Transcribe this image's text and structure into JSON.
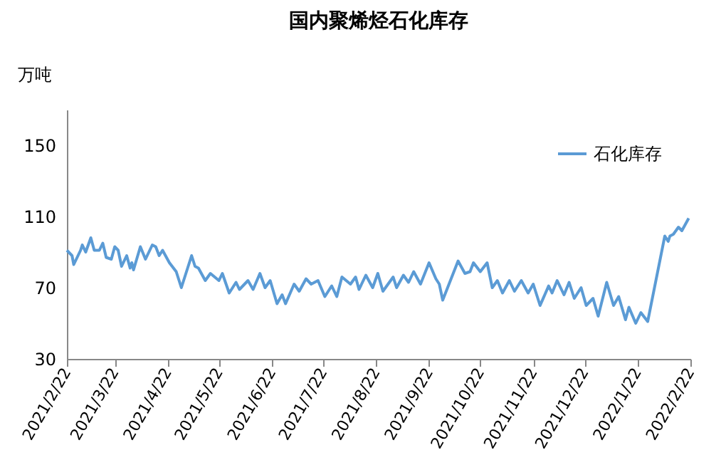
{
  "chart_data": {
    "type": "line",
    "title": "国内聚烯烃石化库存",
    "ylabel": "万吨",
    "x": [
      "2021-02-22",
      "2021-02-25",
      "2021-02-26",
      "2021-03-02",
      "2021-03-03",
      "2021-03-05",
      "2021-03-08",
      "2021-03-10",
      "2021-03-13",
      "2021-03-15",
      "2021-03-17",
      "2021-03-20",
      "2021-03-22",
      "2021-03-24",
      "2021-03-26",
      "2021-03-29",
      "2021-03-31",
      "2021-04-01",
      "2021-04-02",
      "2021-04-06",
      "2021-04-09",
      "2021-04-13",
      "2021-04-15",
      "2021-04-17",
      "2021-04-19",
      "2021-04-23",
      "2021-04-27",
      "2021-04-30",
      "2021-05-06",
      "2021-05-08",
      "2021-05-10",
      "2021-05-14",
      "2021-05-17",
      "2021-05-22",
      "2021-05-24",
      "2021-05-28",
      "2021-06-01",
      "2021-06-03",
      "2021-06-08",
      "2021-06-11",
      "2021-06-15",
      "2021-06-18",
      "2021-06-21",
      "2021-06-25",
      "2021-06-28",
      "2021-06-30",
      "2021-07-05",
      "2021-07-08",
      "2021-07-12",
      "2021-07-15",
      "2021-07-19",
      "2021-07-23",
      "2021-07-27",
      "2021-07-30",
      "2021-08-02",
      "2021-08-07",
      "2021-08-10",
      "2021-08-12",
      "2021-08-16",
      "2021-08-20",
      "2021-08-23",
      "2021-08-26",
      "2021-09-01",
      "2021-09-03",
      "2021-09-07",
      "2021-09-10",
      "2021-09-13",
      "2021-09-17",
      "2021-09-22",
      "2021-09-26",
      "2021-09-28",
      "2021-09-30",
      "2021-10-09",
      "2021-10-13",
      "2021-10-16",
      "2021-10-18",
      "2021-10-22",
      "2021-10-26",
      "2021-10-29",
      "2021-11-01",
      "2021-11-04",
      "2021-11-08",
      "2021-11-11",
      "2021-11-15",
      "2021-11-19",
      "2021-11-22",
      "2021-11-26",
      "2021-12-01",
      "2021-12-03",
      "2021-12-06",
      "2021-12-10",
      "2021-12-13",
      "2021-12-16",
      "2021-12-20",
      "2021-12-23",
      "2021-12-27",
      "2021-12-30",
      "2022-01-04",
      "2022-01-08",
      "2022-01-11",
      "2022-01-15",
      "2022-01-17",
      "2022-01-21",
      "2022-01-24",
      "2022-01-28",
      "2022-02-07",
      "2022-02-09",
      "2022-02-10",
      "2022-02-12",
      "2022-02-15",
      "2022-02-17",
      "2022-02-21"
    ],
    "series": [
      {
        "name": "石化库存",
        "color": "#5b9bd5",
        "values": [
          91,
          88,
          83,
          91,
          94,
          90,
          98,
          91,
          91,
          95,
          87,
          86,
          93,
          91,
          82,
          88,
          81,
          84,
          80,
          93,
          86,
          94,
          93,
          88,
          91,
          84,
          79,
          70,
          88,
          82,
          81,
          74,
          78,
          74,
          78,
          67,
          73,
          69,
          74,
          69,
          78,
          70,
          74,
          61,
          66,
          61,
          72,
          68,
          75,
          72,
          74,
          65,
          71,
          65,
          76,
          72,
          76,
          69,
          77,
          70,
          78,
          68,
          76,
          70,
          77,
          73,
          79,
          72,
          84,
          75,
          72,
          63,
          85,
          78,
          79,
          84,
          79,
          84,
          70,
          74,
          67,
          74,
          68,
          74,
          67,
          72,
          60,
          71,
          67,
          74,
          66,
          73,
          64,
          70,
          60,
          64,
          54,
          73,
          60,
          65,
          52,
          59,
          50,
          56,
          51,
          99,
          96,
          99,
          100,
          104,
          102,
          109
        ]
      }
    ],
    "xlim": [
      "2021-02-22",
      "2022-02-22"
    ],
    "xticks": [
      {
        "value": "2021-02-22",
        "label": "2021/2/22"
      },
      {
        "value": "2021-03-22",
        "label": "2021/3/22"
      },
      {
        "value": "2021-04-22",
        "label": "2021/4/22"
      },
      {
        "value": "2021-05-22",
        "label": "2021/5/22"
      },
      {
        "value": "2021-06-22",
        "label": "2021/6/22"
      },
      {
        "value": "2021-07-22",
        "label": "2021/7/22"
      },
      {
        "value": "2021-08-22",
        "label": "2021/8/22"
      },
      {
        "value": "2021-09-22",
        "label": "2021/9/22"
      },
      {
        "value": "2021-10-22",
        "label": "2021/10/22"
      },
      {
        "value": "2021-11-22",
        "label": "2021/11/22"
      },
      {
        "value": "2021-12-22",
        "label": "2021/12/22"
      },
      {
        "value": "2022-01-22",
        "label": "2022/1/22"
      },
      {
        "value": "2022-02-22",
        "label": "2022/2/22"
      }
    ],
    "ylim": [
      30,
      170
    ],
    "yticks": [
      30,
      70,
      110,
      150
    ],
    "grid": false,
    "legend": "top right",
    "marker": "none",
    "line_style": "solid"
  }
}
